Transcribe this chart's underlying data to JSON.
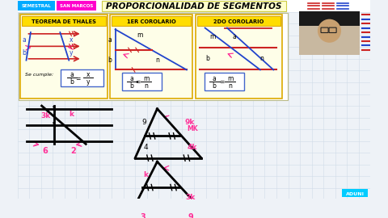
{
  "bg_color": "#eef2f7",
  "title": "PROPORCIONALIDAD DE SEGMENTOS",
  "header_semestral": "SEMESTRAL",
  "header_sanmarcos": "SAN MARCOS",
  "header_semestral_bg": "#00aaff",
  "header_sanmarcos_bg": "#ff00cc",
  "section1_title": "TEOREMA DE THALES",
  "section2_title": "1ER COROLARIO",
  "section3_title": "2DO COROLARIO",
  "section_title_bg": "#ffdd00",
  "section_border": "#ddaa00",
  "aduni_color": "#00ccff",
  "red_line_color": "#cc2222",
  "blue_line_color": "#2244cc",
  "pink_color": "#ff3399",
  "grid_line_color": "#d0dce8"
}
